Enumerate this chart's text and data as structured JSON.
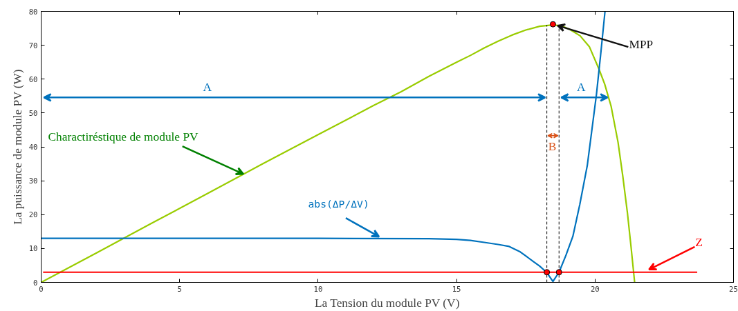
{
  "chart_data": {
    "type": "line",
    "xlabel": "La Tension du module PV (V)",
    "ylabel": "La puissance de module PV (W)",
    "xlim": [
      0,
      25
    ],
    "xticks": [
      0,
      5,
      10,
      15,
      20,
      25
    ],
    "ylim": [
      0,
      80
    ],
    "yticks": [
      0,
      10,
      20,
      30,
      40,
      50,
      60,
      70,
      80
    ],
    "grid": false,
    "series": [
      {
        "color": "#99cc00",
        "x": [
          0,
          2,
          4,
          6,
          8,
          10,
          12,
          13,
          14,
          15,
          15.5,
          16,
          16.5,
          17,
          17.5,
          18,
          18.48,
          18.8,
          19.1,
          19.46,
          19.8,
          20.14,
          20.35,
          20.58,
          20.83,
          21.0,
          21.17,
          21.3,
          21.43
        ],
        "values": [
          0,
          8.7,
          17.5,
          26.2,
          35,
          43.6,
          52.2,
          56.3,
          60.8,
          65,
          67,
          69.2,
          71.2,
          73,
          74.5,
          75.6,
          76,
          75.7,
          74.6,
          72.8,
          69.5,
          63,
          58.5,
          52,
          41.4,
          31.5,
          20.5,
          10.5,
          0
        ]
      },
      {
        "color": "#0072bd",
        "x": [
          0,
          10,
          14,
          15,
          15.5,
          16,
          16.5,
          16.9,
          17.3,
          17.75,
          18,
          18.26,
          18.48,
          18.7,
          18.95,
          19.2,
          19.45,
          19.72,
          20.05,
          20.2,
          20.36
        ],
        "values": [
          13,
          13,
          12.9,
          12.7,
          12.4,
          11.8,
          11.2,
          10.6,
          9,
          6.3,
          4.8,
          2.9,
          0.3,
          3,
          8,
          13.6,
          23,
          34.5,
          55.4,
          67,
          80
        ]
      },
      {
        "color": "#ff0000",
        "x": [
          0.07,
          23.69
        ],
        "values": [
          3,
          3
        ]
      },
      {
        "color": "#000000",
        "line_style": "dashed",
        "x": [
          18.26,
          18.26
        ],
        "values": [
          0,
          76
        ]
      },
      {
        "color": "#000000",
        "line_style": "dashed",
        "x": [
          18.7,
          18.7
        ],
        "values": [
          0,
          76
        ]
      },
      {
        "type": "scatter",
        "marker": "circle",
        "color": "#ff0000",
        "x": [
          18.26,
          18.7,
          18.48
        ],
        "values": [
          3,
          3,
          76.2
        ]
      }
    ],
    "annotations": [
      "A",
      "A",
      "B",
      {
        "text": "Charactiréstique de module PV",
        "x": 7.3,
        "y": 32
      },
      {
        "text": "abs(ΔP/ΔV)",
        "x": 12.2,
        "y": 13.5
      },
      {
        "text": "MPP",
        "x": 18.48,
        "y": 76.2
      },
      {
        "text": "Z",
        "x": 21.95,
        "y": 3
      }
    ]
  }
}
